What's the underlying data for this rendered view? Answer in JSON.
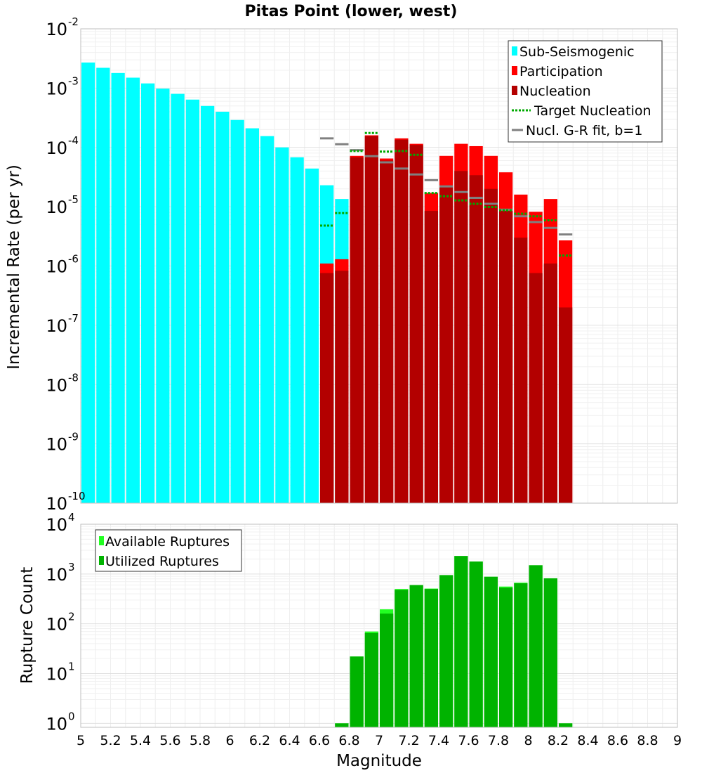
{
  "chart_data": [
    {
      "type": "bar",
      "title": "Pitas Point (lower, west)",
      "xlabel": "",
      "ylabel": "Incremental Rate (per yr)",
      "yscale": "log",
      "ylim_exponents": [
        -10,
        -2
      ],
      "xlim": [
        5,
        9
      ],
      "colors": {
        "sub": "#00ffff",
        "participation": "#ff0000",
        "nucleation": "#b30000",
        "target": "#00aa00",
        "gr": "#808080",
        "grid": "#e6e6e6"
      },
      "legend": [
        "Sub-Seismogenic",
        "Participation",
        "Nucleation",
        "Target Nucleation",
        "Nucl. G-R fit, b=1"
      ],
      "subseismogenic": {
        "x": [
          5.05,
          5.15,
          5.25,
          5.35,
          5.45,
          5.55,
          5.65,
          5.75,
          5.85,
          5.95,
          6.05,
          6.15,
          6.25,
          6.35,
          6.45,
          6.55,
          6.65,
          6.75
        ],
        "values": [
          0.0027,
          0.0022,
          0.0018,
          0.0015,
          0.0012,
          0.00098,
          0.0008,
          0.00064,
          0.0005,
          0.0004,
          0.00029,
          0.00021,
          0.000155,
          0.0001,
          6.8e-05,
          4.4e-05,
          2.3e-05,
          1.35e-05
        ]
      },
      "participation": {
        "x": [
          6.65,
          6.75,
          6.85,
          6.95,
          7.05,
          7.15,
          7.25,
          7.35,
          7.45,
          7.55,
          7.65,
          7.75,
          7.85,
          7.95,
          8.05,
          8.15,
          8.25
        ],
        "values": [
          1.1e-06,
          1.3e-06,
          7.2e-05,
          0.00016,
          6.5e-05,
          0.000142,
          0.000115,
          1.7e-05,
          7.2e-05,
          0.000115,
          0.000105,
          7.2e-05,
          3.8e-05,
          1.6e-05,
          8.2e-06,
          1.35e-05,
          2.7e-06
        ]
      },
      "nucleation": {
        "x": [
          6.65,
          6.75,
          6.85,
          6.95,
          7.05,
          7.15,
          7.25,
          7.35,
          7.45,
          7.55,
          7.65,
          7.75,
          7.85,
          7.95,
          8.05,
          8.15,
          8.25
        ],
        "values": [
          7.6e-07,
          8.3e-07,
          6.8e-05,
          0.000155,
          6e-05,
          0.000135,
          0.00011,
          8.5e-06,
          2.2e-05,
          4e-05,
          3.4e-05,
          2e-05,
          8.5e-06,
          3e-06,
          7.6e-07,
          1.1e-06,
          2e-07
        ]
      },
      "target_nucleation": {
        "x": [
          6.65,
          6.75,
          6.85,
          6.95,
          7.05,
          7.15,
          7.25,
          7.35,
          7.45,
          7.55,
          7.65,
          7.75,
          7.85,
          7.95,
          8.05,
          8.15,
          8.25
        ],
        "values": [
          4.8e-06,
          7.8e-06,
          8.7e-05,
          0.000175,
          8.5e-05,
          8.7e-05,
          7.5e-05,
          1.7e-05,
          1.5e-05,
          1.28e-05,
          1.12e-05,
          9.9e-06,
          8.7e-06,
          7.6e-06,
          6.9e-06,
          5.9e-06,
          1.5e-06
        ]
      },
      "gr_fit": {
        "x": [
          6.65,
          6.75,
          6.85,
          6.95,
          7.05,
          7.15,
          7.25,
          7.35,
          7.45,
          7.55,
          7.65,
          7.75,
          7.85,
          7.95,
          8.05,
          8.15,
          8.25
        ],
        "values": [
          0.000142,
          0.000113,
          9e-05,
          7.1e-05,
          5.6e-05,
          4.4e-05,
          3.5e-05,
          2.8e-05,
          2.2e-05,
          1.77e-05,
          1.41e-05,
          1.12e-05,
          8.9e-06,
          6.9e-06,
          5.5e-06,
          4.4e-06,
          3.4e-06
        ]
      },
      "ytick_exponents": [
        -10,
        -9,
        -8,
        -7,
        -6,
        -5,
        -4,
        -3,
        -2
      ]
    },
    {
      "type": "bar",
      "title": "",
      "xlabel": "Magnitude",
      "ylabel": "Rupture Count",
      "yscale": "log",
      "ylim_exponents": [
        0,
        4
      ],
      "xlim": [
        5,
        9
      ],
      "colors": {
        "available": "#22ff22",
        "utilized": "#00b300"
      },
      "legend": [
        "Available Ruptures",
        "Utilized Ruptures"
      ],
      "available": {
        "x": [
          6.75,
          6.85,
          6.95,
          7.05,
          7.15,
          7.25,
          7.35,
          7.45,
          7.55,
          7.65,
          7.75,
          7.85,
          7.95,
          8.05,
          8.15,
          8.25
        ],
        "values": [
          1,
          22,
          70,
          195,
          500,
          600,
          510,
          950,
          2300,
          1780,
          880,
          560,
          670,
          1500,
          820,
          1
        ]
      },
      "utilized": {
        "x": [
          6.75,
          6.85,
          6.95,
          7.05,
          7.15,
          7.25,
          7.35,
          7.45,
          7.55,
          7.65,
          7.75,
          7.85,
          7.95,
          8.05,
          8.15,
          8.25
        ],
        "values": [
          1,
          22,
          65,
          160,
          480,
          600,
          500,
          950,
          2300,
          1780,
          880,
          530,
          650,
          1500,
          820,
          1
        ]
      },
      "ytick_exponents": [
        0,
        1,
        2,
        3,
        4
      ],
      "xticks": [
        "5",
        "5.2",
        "5.4",
        "5.6",
        "5.8",
        "6",
        "6.2",
        "6.4",
        "6.6",
        "6.8",
        "7",
        "7.2",
        "7.4",
        "7.6",
        "7.8",
        "8",
        "8.2",
        "8.4",
        "8.6",
        "8.8",
        "9"
      ]
    }
  ]
}
